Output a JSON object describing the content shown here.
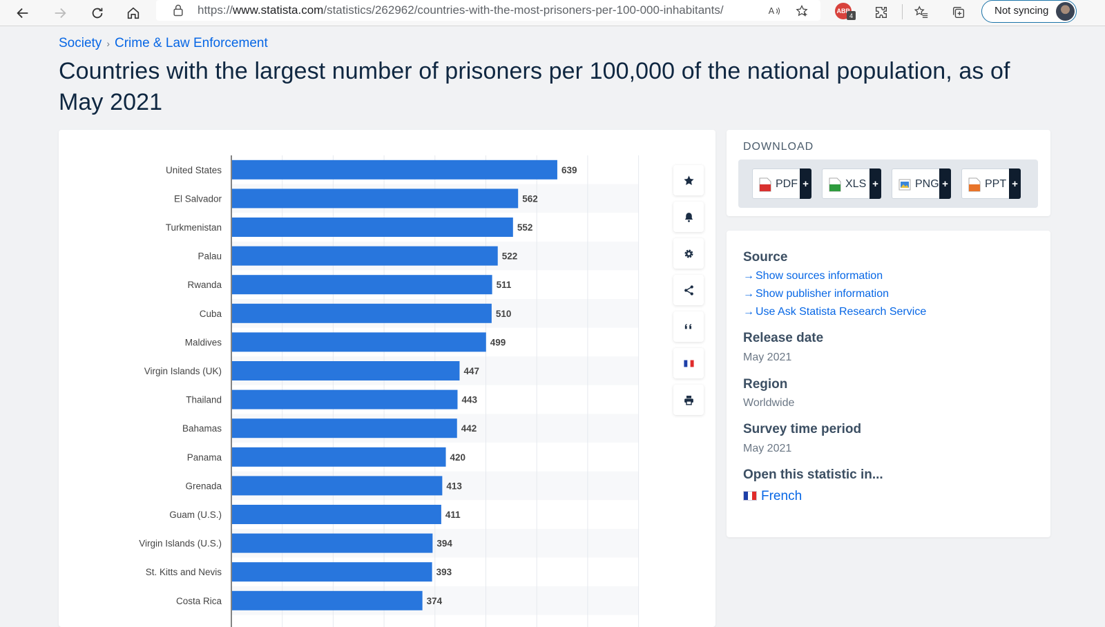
{
  "browser": {
    "url_prefix": "https://",
    "url_host": "www.statista.com",
    "url_path": "/statistics/262962/countries-with-the-most-prisoners-per-100-000-inhabitants/",
    "extension_badge": "ABP",
    "extension_count": "4",
    "sync_label": "Not syncing"
  },
  "breadcrumb": {
    "items": [
      "Society",
      "Crime & Law Enforcement"
    ],
    "separator": "›"
  },
  "page_title": "Countries with the largest number of prisoners per 100,000 of the national population, as of May 2021",
  "chart_data": {
    "type": "bar",
    "orientation": "horizontal",
    "categories": [
      "United States",
      "El Salvador",
      "Turkmenistan",
      "Palau",
      "Rwanda",
      "Cuba",
      "Maldives",
      "Virgin Islands (UK)",
      "Thailand",
      "Bahamas",
      "Panama",
      "Grenada",
      "Guam (U.S.)",
      "Virgin Islands (U.S.)",
      "St. Kitts and Nevis",
      "Costa Rica"
    ],
    "values": [
      639,
      562,
      552,
      522,
      511,
      510,
      499,
      447,
      443,
      442,
      420,
      413,
      411,
      394,
      393,
      374
    ],
    "xlim": [
      0,
      800
    ],
    "grid": true,
    "bar_color": "#2876dd"
  },
  "actions": [
    {
      "name": "favorite",
      "icon": "star-icon"
    },
    {
      "name": "notification",
      "icon": "bell-icon"
    },
    {
      "name": "settings",
      "icon": "gear-icon"
    },
    {
      "name": "share",
      "icon": "share-icon"
    },
    {
      "name": "cite",
      "icon": "quote-icon"
    },
    {
      "name": "language",
      "icon": "french-flag-icon"
    },
    {
      "name": "print",
      "icon": "printer-icon"
    }
  ],
  "download": {
    "heading": "DOWNLOAD",
    "buttons": [
      {
        "label": "PDF",
        "plus": "+",
        "color": "#d8312f"
      },
      {
        "label": "XLS",
        "plus": "+",
        "color": "#2e9b3e"
      },
      {
        "label": "PNG",
        "plus": "+",
        "color": "#3a86d9"
      },
      {
        "label": "PPT",
        "plus": "+",
        "color": "#e8742a"
      }
    ]
  },
  "info": {
    "source_heading": "Source",
    "source_links": [
      "Show sources information",
      "Show publisher information",
      "Use Ask Statista Research Service"
    ],
    "release_heading": "Release date",
    "release_value": "May 2021",
    "region_heading": "Region",
    "region_value": "Worldwide",
    "survey_heading": "Survey time period",
    "survey_value": "May 2021",
    "open_heading": "Open this statistic in...",
    "open_link": "French"
  }
}
